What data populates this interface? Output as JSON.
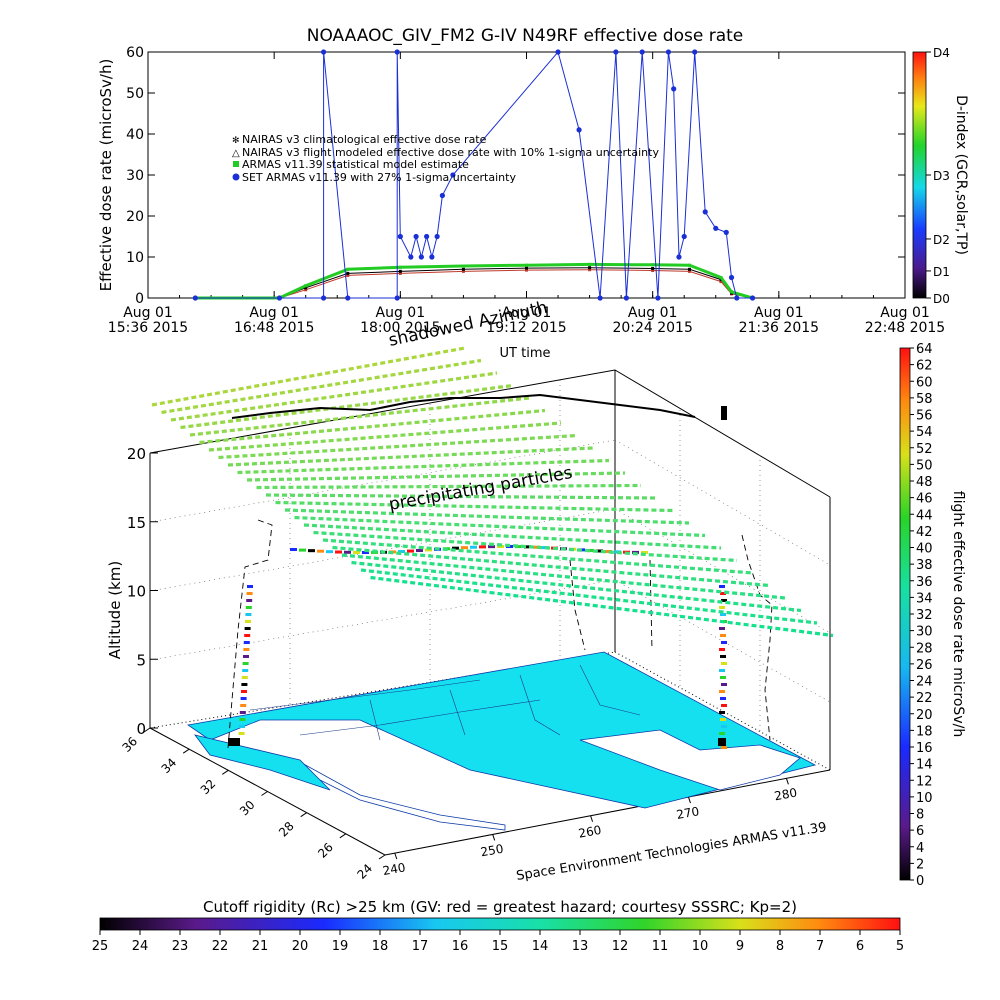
{
  "title": "NOAAAOC_GIV_FM2 G-IV   N49RF  effective dose rate",
  "colors": {
    "climatological": "#c0392b",
    "modeled": "#000000",
    "armas_model": "#22cc22",
    "set_armas": "#1a2fd6",
    "map_fill": "#14e0f0"
  },
  "chart_data": [
    {
      "type": "line",
      "title": "NOAAAOC_GIV_FM2 G-IV   N49RF  effective dose rate",
      "xlabel": "UT time",
      "ylabel": "Effective dose rate (microSv/h)",
      "ylim": [
        0,
        60
      ],
      "xticks": [
        {
          "l1": "Aug 01",
          "l2": "15:36 2015"
        },
        {
          "l1": "Aug 01",
          "l2": "16:48 2015"
        },
        {
          "l1": "Aug 01",
          "l2": "18:00 2015"
        },
        {
          "l1": "Aug 01",
          "l2": "19:12 2015"
        },
        {
          "l1": "Aug 01",
          "l2": "20:24 2015"
        },
        {
          "l1": "Aug 01",
          "l2": "21:36 2015"
        },
        {
          "l1": "Aug 01",
          "l2": "22:48 2015"
        }
      ],
      "xlim_hours": [
        15.6,
        22.8
      ],
      "yticks": [
        0,
        10,
        20,
        30,
        40,
        50,
        60
      ],
      "legend": [
        "NAIRAS v3 climatological effective dose rate",
        "NAIRAS v3 flight modeled effective dose rate with 10% 1-sigma uncertainty",
        "ARMAS v11.39 statistical model estimate",
        "SET ARMAS v11.39 with 27% 1-sigma uncertainty"
      ],
      "series": [
        {
          "name": "NAIRAS v3 climatological effective dose rate",
          "x": [
            16.05,
            16.85,
            17.1,
            17.5,
            18.0,
            18.6,
            19.2,
            19.8,
            20.4,
            20.75,
            21.05,
            21.15,
            21.35
          ],
          "y": [
            0,
            0,
            2,
            5.5,
            6,
            6.5,
            6.8,
            6.9,
            6.7,
            6.5,
            4,
            1,
            0
          ]
        },
        {
          "name": "NAIRAS v3 flight modeled effective dose rate with 10% 1-sigma uncertainty",
          "x": [
            16.05,
            16.85,
            17.1,
            17.5,
            18.0,
            18.6,
            19.2,
            19.8,
            20.4,
            20.75,
            21.05,
            21.15,
            21.35
          ],
          "y": [
            0,
            0,
            2.5,
            6,
            6.5,
            7,
            7.3,
            7.4,
            7.2,
            7,
            4.5,
            1.2,
            0
          ]
        },
        {
          "name": "ARMAS v11.39 statistical model estimate",
          "x": [
            16.05,
            16.85,
            17.1,
            17.5,
            18.0,
            18.6,
            19.2,
            19.8,
            20.4,
            20.75,
            21.05,
            21.15,
            21.35
          ],
          "y": [
            0,
            0,
            3,
            7,
            7.5,
            7.8,
            8,
            8.2,
            8.1,
            8,
            5,
            1.5,
            0
          ]
        },
        {
          "name": "SET ARMAS v11.39 with 27% 1-sigma uncertainty",
          "x": [
            16.05,
            16.85,
            17.27,
            17.27,
            17.5,
            17.97,
            17.97,
            18.0,
            18.1,
            18.15,
            18.2,
            18.25,
            18.3,
            18.35,
            18.4,
            18.5,
            19.5,
            19.7,
            19.9,
            20.05,
            20.15,
            20.3,
            20.45,
            20.55,
            20.6,
            20.65,
            20.7,
            20.8,
            20.9,
            21.0,
            21.1,
            21.15,
            21.2,
            21.35
          ],
          "y": [
            0,
            0,
            0,
            60,
            0,
            0,
            60,
            15,
            10,
            15,
            10,
            15,
            10,
            15,
            25,
            30,
            60,
            41,
            0,
            60,
            0,
            60,
            0,
            60,
            51,
            10,
            15,
            60,
            21,
            17,
            16,
            5,
            0,
            0
          ]
        }
      ]
    },
    {
      "type": "scatter",
      "title": "",
      "xlabel": "",
      "ylabel": "Altitude (km)",
      "zticks": [
        0,
        5,
        10,
        15,
        20
      ],
      "lat_ticks": [
        36,
        34,
        32,
        30,
        28,
        26,
        24
      ],
      "lon_ticks": [
        240,
        250,
        260,
        270,
        280
      ],
      "annotations": [
        "shadowed Azimuth",
        "precipitating particles",
        "Space Environment Technologies ARMAS v11.39"
      ],
      "colorbar_label": "flight effective dose rate microSv/h",
      "colorbar_ticks": [
        0,
        2,
        4,
        6,
        8,
        10,
        12,
        14,
        16,
        18,
        20,
        22,
        24,
        26,
        28,
        30,
        32,
        34,
        36,
        38,
        40,
        42,
        44,
        46,
        48,
        50,
        52,
        54,
        56,
        58,
        60,
        62,
        64
      ]
    },
    {
      "type": "heatmap",
      "title": "Cutoff rigidity (Rc) >25 km (GV: red = greatest hazard; courtesy SSSRC; Kp=2)",
      "colorbar_ticks": [
        25,
        24,
        23,
        22,
        21,
        20,
        19,
        18,
        17,
        16,
        15,
        14,
        13,
        12,
        11,
        10,
        9,
        8,
        7,
        6,
        5
      ]
    }
  ],
  "dindex": {
    "label": "D-index (GCR,solar,TP)",
    "ticks": [
      {
        "label": "D4",
        "frac": 1.0
      },
      {
        "label": "D3",
        "frac": 0.5
      },
      {
        "label": "D2",
        "frac": 0.24
      },
      {
        "label": "D1",
        "frac": 0.11
      },
      {
        "label": "D0",
        "frac": 0.0
      }
    ]
  }
}
